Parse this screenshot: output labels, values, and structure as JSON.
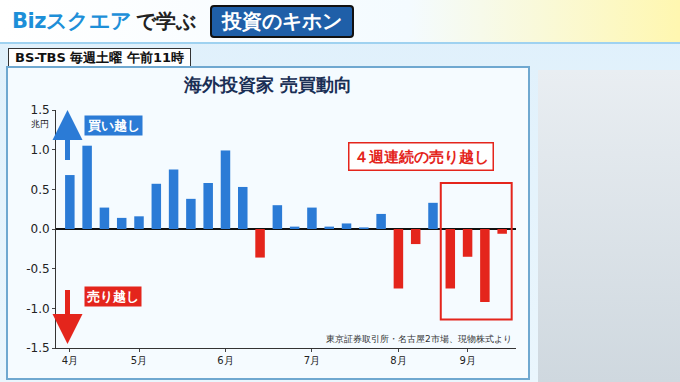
{
  "banner": {
    "program": "Bizスクエア",
    "suffix": "で学ぶ",
    "series": "投資のキホン",
    "schedule": "BS-TBS 毎週土曜 午前11時"
  },
  "chart_data": {
    "type": "bar",
    "title": "海外投資家 売買動向",
    "ylabel": "兆円",
    "categories": [
      "4月",
      null,
      null,
      null,
      "5月",
      null,
      null,
      null,
      null,
      "6月",
      null,
      null,
      null,
      null,
      "7月",
      null,
      null,
      null,
      null,
      "8月",
      null,
      null,
      null,
      "9月",
      null,
      null
    ],
    "values": [
      0.68,
      1.05,
      0.27,
      0.14,
      0.16,
      0.57,
      0.75,
      0.38,
      0.58,
      0.99,
      0.53,
      -0.36,
      0.3,
      0.03,
      0.27,
      0.03,
      0.07,
      0.02,
      0.19,
      -0.75,
      -0.19,
      0.33,
      -0.75,
      -0.35,
      -0.92,
      -0.06
    ],
    "colors": [
      "#2b7bd6",
      "#2b7bd6",
      "#2b7bd6",
      "#2b7bd6",
      "#2b7bd6",
      "#2b7bd6",
      "#2b7bd6",
      "#2b7bd6",
      "#2b7bd6",
      "#2b7bd6",
      "#2b7bd6",
      "#e4251c",
      "#2b7bd6",
      "#2b7bd6",
      "#2b7bd6",
      "#2b7bd6",
      "#2b7bd6",
      "#2b7bd6",
      "#2b7bd6",
      "#e4251c",
      "#e4251c",
      "#2b7bd6",
      "#e4251c",
      "#e4251c",
      "#e4251c",
      "#e4251c"
    ],
    "ylim": [
      -1.5,
      1.5
    ],
    "yticks": [
      -1.5,
      {
        "value": -1.0,
        "label": "-1.0"
      },
      -0.5,
      {
        "value": 0,
        "label": "0.0"
      },
      0.5,
      {
        "value": 1.0,
        "label": "1.0"
      },
      1.5
    ],
    "grid": false,
    "annotations": [
      "買い越し",
      "売り越し",
      "４週連続の売り越し"
    ],
    "source": "東京証券取引所・名古屋2市場、現物株式より"
  }
}
